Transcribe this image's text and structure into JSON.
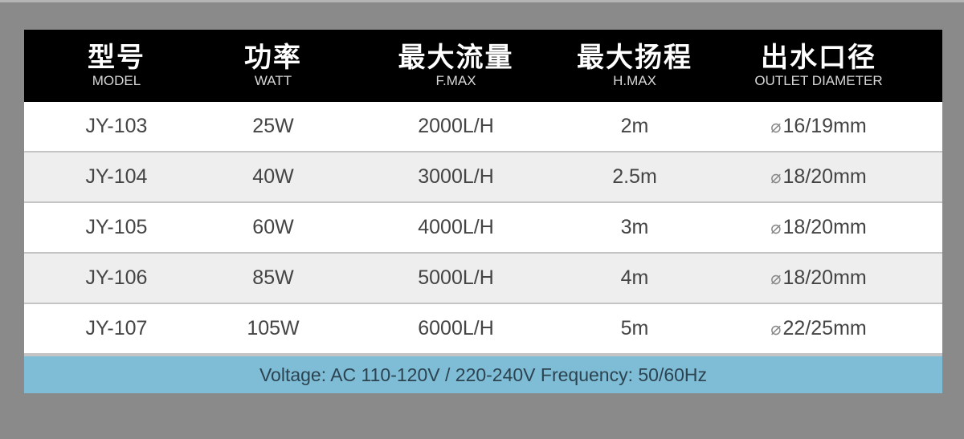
{
  "headers": [
    {
      "zh": "型号",
      "en": "MODEL"
    },
    {
      "zh": "功率",
      "en": "WATT"
    },
    {
      "zh": "最大流量",
      "en": "F.MAX"
    },
    {
      "zh": "最大扬程",
      "en": "H.MAX"
    },
    {
      "zh": "出水口径",
      "en": "OUTLET DIAMETER"
    }
  ],
  "diameter_symbol": "⌀",
  "rows": [
    {
      "model": "JY-103",
      "watt": "25W",
      "flow": "2000L/H",
      "head": "2m",
      "outlet": "16/19mm"
    },
    {
      "model": "JY-104",
      "watt": "40W",
      "flow": "3000L/H",
      "head": "2.5m",
      "outlet": "18/20mm"
    },
    {
      "model": "JY-105",
      "watt": "60W",
      "flow": "4000L/H",
      "head": "3m",
      "outlet": "18/20mm"
    },
    {
      "model": "JY-106",
      "watt": "85W",
      "flow": "5000L/H",
      "head": "4m",
      "outlet": "18/20mm"
    },
    {
      "model": "JY-107",
      "watt": "105W",
      "flow": "6000L/H",
      "head": "5m",
      "outlet": "22/25mm"
    }
  ],
  "footer": "Voltage: AC 110-120V / 220-240V Frequency: 50/60Hz",
  "colors": {
    "header_bg": "#000000",
    "footer_bg": "#7fbcd6",
    "page_bg": "#8a8a8a"
  }
}
